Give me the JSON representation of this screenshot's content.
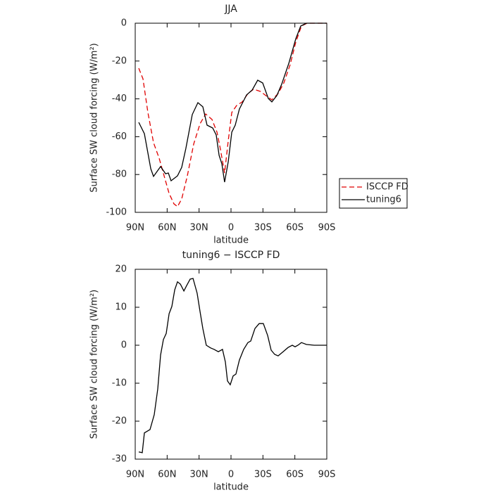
{
  "chart_data": [
    {
      "type": "line",
      "title": "JJA",
      "xlabel": "latitude",
      "ylabel": "Surface SW cloud forcing (W/m²)",
      "xlim": [
        90,
        -90
      ],
      "ylim": [
        -100,
        0
      ],
      "xticks": [
        {
          "value": 90,
          "label": "90N"
        },
        {
          "value": 60,
          "label": "60N"
        },
        {
          "value": 30,
          "label": "30N"
        },
        0,
        {
          "value": -30,
          "label": "30S"
        },
        {
          "value": -60,
          "label": "60S"
        },
        {
          "value": -90,
          "label": "90S"
        }
      ],
      "yticks": [
        -100,
        -80,
        -60,
        -40,
        -20,
        0
      ],
      "legend": "right",
      "series": [
        {
          "name": "ISCCP FD",
          "color": "#e00000",
          "linestyle": "dashed",
          "x": [
            86.7,
            82.7,
            78.1,
            72.8,
            67.5,
            62.9,
            58.2,
            53.6,
            50.3,
            46.3,
            41.0,
            35.1,
            29.1,
            23.8,
            17.9,
            13.2,
            10.0,
            6.0,
            2.6,
            -0.7,
            -5.3,
            -10.6,
            -15.9,
            -21.2,
            -27.8,
            -34.4,
            -38.4,
            -44.3,
            -49.6,
            -55.6,
            -60.9,
            -66.2,
            -71.5,
            -90
          ],
          "values": [
            -23.8,
            -29.4,
            -47.2,
            -63.2,
            -71.4,
            -80.7,
            -90,
            -95.5,
            -97,
            -92.9,
            -80.7,
            -63.9,
            -53.2,
            -48,
            -50.9,
            -57.6,
            -66.5,
            -79.2,
            -62.1,
            -47.2,
            -43.5,
            -41.6,
            -37.2,
            -34.9,
            -36.1,
            -39,
            -40.5,
            -37.2,
            -31.6,
            -21.9,
            -10,
            -1.5,
            0,
            0
          ]
        },
        {
          "name": "tuning6",
          "color": "#000000",
          "linestyle": "solid",
          "x": [
            86.7,
            81.4,
            75.4,
            72.8,
            66.2,
            61.5,
            58.9,
            56.3,
            50.3,
            46.3,
            42.4,
            36.4,
            31.1,
            26.5,
            22.5,
            17.2,
            13.9,
            11.2,
            8.6,
            6.0,
            2.6,
            -0.7,
            -4.0,
            -7.9,
            -14.6,
            -19.9,
            -25.1,
            -29.8,
            -35.1,
            -38.4,
            -43.0,
            -47.6,
            -54.3,
            -60.9,
            -65.5,
            -70.8,
            -90
          ],
          "values": [
            -52.4,
            -58.4,
            -77,
            -81,
            -75.8,
            -79.6,
            -79.2,
            -83.3,
            -80.7,
            -76.2,
            -66.2,
            -48.3,
            -42,
            -44.2,
            -53.9,
            -55.4,
            -59.1,
            -69.9,
            -74.3,
            -84,
            -73.2,
            -57.6,
            -53.9,
            -45.4,
            -37.9,
            -35.3,
            -30.1,
            -31.6,
            -39.8,
            -41.6,
            -38.3,
            -32.3,
            -21.2,
            -8.2,
            -1.5,
            0,
            0
          ]
        }
      ]
    },
    {
      "type": "line",
      "title": "tuning6 − ISCCP FD",
      "xlabel": "latitude",
      "ylabel": "Surface SW cloud forcing (W/m²)",
      "xlim": [
        90,
        -90
      ],
      "ylim": [
        -30,
        20
      ],
      "xticks": [
        {
          "value": 90,
          "label": "90N"
        },
        {
          "value": 60,
          "label": "60N"
        },
        {
          "value": 30,
          "label": "30N"
        },
        0,
        {
          "value": -30,
          "label": "30S"
        },
        {
          "value": -60,
          "label": "60S"
        },
        {
          "value": -90,
          "label": "90S"
        }
      ],
      "yticks": [
        -30,
        -20,
        -10,
        0,
        10,
        20
      ],
      "series": [
        {
          "color": "#000000",
          "linestyle": "solid",
          "x": [
            86.7,
            83.4,
            81.4,
            76.1,
            72.1,
            68.8,
            66.2,
            63.5,
            60.9,
            58.2,
            55.6,
            52.9,
            50.3,
            47.6,
            44.3,
            41.7,
            38.4,
            35.7,
            31.8,
            29.1,
            26.5,
            23.2,
            19.2,
            15.9,
            11.9,
            8.0,
            5.3,
            3.3,
            0.7,
            -2.0,
            -4.6,
            -7.9,
            -11.9,
            -15.9,
            -18.5,
            -22.5,
            -26.5,
            -30.4,
            -34.4,
            -37.7,
            -41.0,
            -44.3,
            -49.0,
            -53.6,
            -57.6,
            -60.2,
            -62.9,
            -66.2,
            -70.8,
            -78.1,
            -90
          ],
          "values": [
            -28.1,
            -28.3,
            -23.1,
            -22.2,
            -18.3,
            -11.5,
            -2.6,
            1.5,
            3.1,
            8.3,
            10.2,
            14.6,
            16.7,
            16.1,
            14.3,
            15.7,
            17.4,
            17.6,
            13.7,
            8.9,
            4.4,
            0,
            -0.7,
            -1.1,
            -1.7,
            -1.1,
            -4.4,
            -9.4,
            -10.4,
            -8.1,
            -7.6,
            -3.9,
            -1.1,
            0.7,
            1.1,
            4.4,
            5.7,
            5.7,
            2.6,
            -1.3,
            -2.4,
            -2.8,
            -1.7,
            -0.6,
            0,
            -0.4,
            0,
            0.7,
            0.2,
            0,
            0
          ]
        }
      ]
    }
  ]
}
